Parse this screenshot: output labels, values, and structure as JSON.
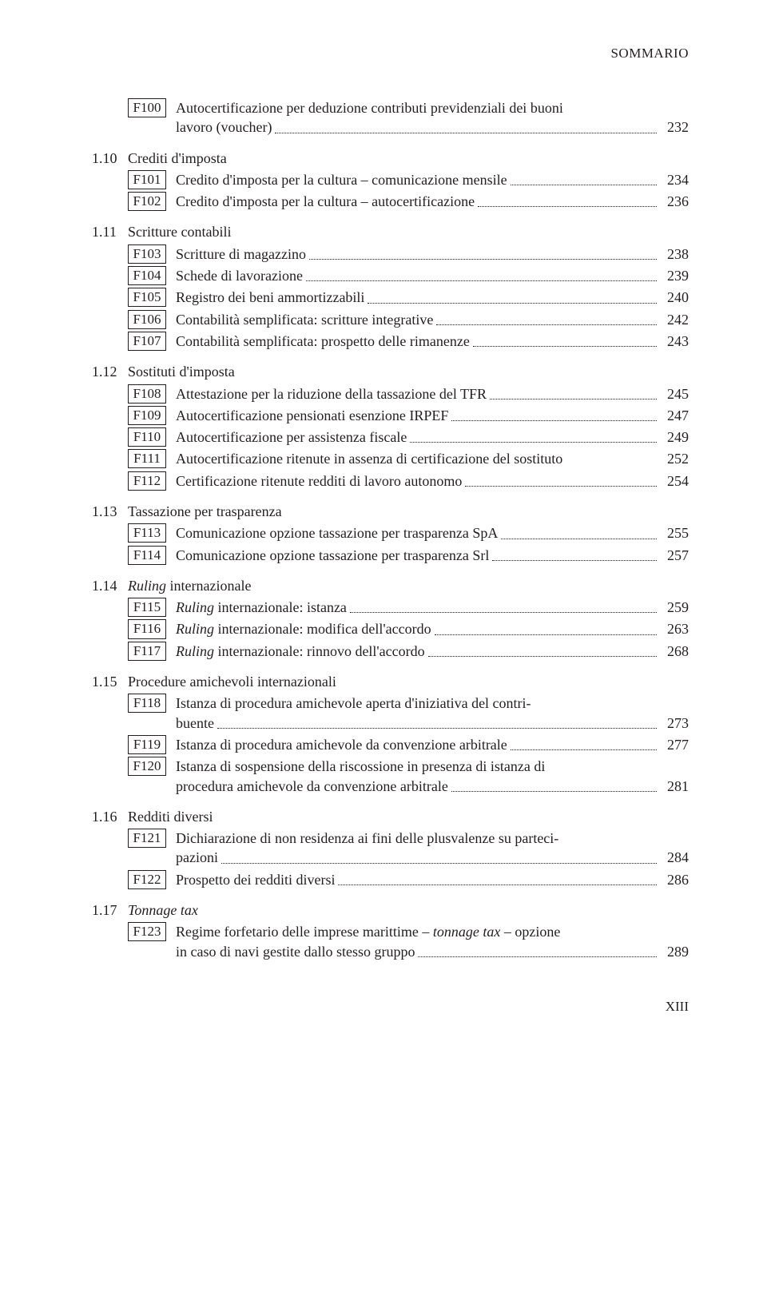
{
  "header": "SOMMARIO",
  "footer": "XIII",
  "top_entry": {
    "code": "F100",
    "line1": "Autocertificazione per deduzione contributi previdenziali dei buoni",
    "line2": "lavoro (voucher)",
    "page": "232"
  },
  "sections": [
    {
      "num": "1.10",
      "title": "Crediti d'imposta",
      "entries": [
        {
          "code": "F101",
          "text": "Credito d'imposta per la cultura – comunicazione mensile",
          "page": "234"
        },
        {
          "code": "F102",
          "text": "Credito d'imposta per la cultura – autocertificazione",
          "page": "236"
        }
      ]
    },
    {
      "num": "1.11",
      "title": "Scritture contabili",
      "entries": [
        {
          "code": "F103",
          "text": "Scritture di magazzino",
          "page": "238"
        },
        {
          "code": "F104",
          "text": "Schede di lavorazione",
          "page": "239"
        },
        {
          "code": "F105",
          "text": "Registro dei beni ammortizzabili",
          "page": "240"
        },
        {
          "code": "F106",
          "text": "Contabilità semplificata: scritture integrative",
          "page": "242"
        },
        {
          "code": "F107",
          "text": "Contabilità semplificata: prospetto delle rimanenze",
          "page": "243"
        }
      ]
    },
    {
      "num": "1.12",
      "title": "Sostituti d'imposta",
      "entries": [
        {
          "code": "F108",
          "text": "Attestazione per la riduzione della tassazione del TFR",
          "page": "245"
        },
        {
          "code": "F109",
          "text": "Autocertificazione pensionati esenzione IRPEF",
          "page": "247"
        },
        {
          "code": "F110",
          "text": "Autocertificazione per assistenza fiscale",
          "page": "249"
        },
        {
          "code": "F111",
          "text": "Autocertificazione ritenute in assenza di certificazione del sostituto",
          "page": "252",
          "nodots": true
        },
        {
          "code": "F112",
          "text": "Certificazione ritenute redditi di lavoro autonomo",
          "page": "254"
        }
      ]
    },
    {
      "num": "1.13",
      "title": "Tassazione per trasparenza",
      "entries": [
        {
          "code": "F113",
          "text": "Comunicazione opzione tassazione per trasparenza SpA",
          "page": "255"
        },
        {
          "code": "F114",
          "text": "Comunicazione opzione tassazione per trasparenza Srl",
          "page": "257"
        }
      ]
    },
    {
      "num": "1.14",
      "title": "Ruling internazionale",
      "title_italic_word": "Ruling",
      "title_rest": " internazionale",
      "entries": [
        {
          "code": "F115",
          "italic_prefix": "Ruling",
          "text_rest": " internazionale: istanza",
          "page": "259"
        },
        {
          "code": "F116",
          "italic_prefix": "Ruling",
          "text_rest": " internazionale: modifica dell'accordo",
          "page": "263"
        },
        {
          "code": "F117",
          "italic_prefix": "Ruling",
          "text_rest": " internazionale: rinnovo dell'accordo",
          "page": "268"
        }
      ]
    },
    {
      "num": "1.15",
      "title": "Procedure amichevoli internazionali",
      "entries": [
        {
          "code": "F118",
          "multi": true,
          "line1": "Istanza di procedura amichevole aperta d'iniziativa del contri-",
          "line2": "buente",
          "page": "273"
        },
        {
          "code": "F119",
          "text": "Istanza di procedura amichevole da convenzione arbitrale",
          "page": "277"
        },
        {
          "code": "F120",
          "multi": true,
          "line1": "Istanza di sospensione della riscossione in presenza di istanza di",
          "line2": "procedura amichevole da convenzione arbitrale",
          "page": "281"
        }
      ]
    },
    {
      "num": "1.16",
      "title": "Redditi diversi",
      "entries": [
        {
          "code": "F121",
          "multi": true,
          "line1": "Dichiarazione di non residenza ai fini delle plusvalenze su parteci-",
          "line2": "pazioni",
          "page": "284"
        },
        {
          "code": "F122",
          "text": "Prospetto dei redditi diversi",
          "page": "286"
        }
      ]
    },
    {
      "num": "1.17",
      "title_italic_word": "Tonnage tax",
      "title_rest": "",
      "entries": [
        {
          "code": "F123",
          "multi": true,
          "line1_pre": "Regime forfetario delle imprese marittime – ",
          "line1_italic": "tonnage tax",
          "line1_post": " – opzione",
          "line2": "in caso di navi gestite dallo stesso gruppo",
          "page": "289"
        }
      ]
    }
  ]
}
